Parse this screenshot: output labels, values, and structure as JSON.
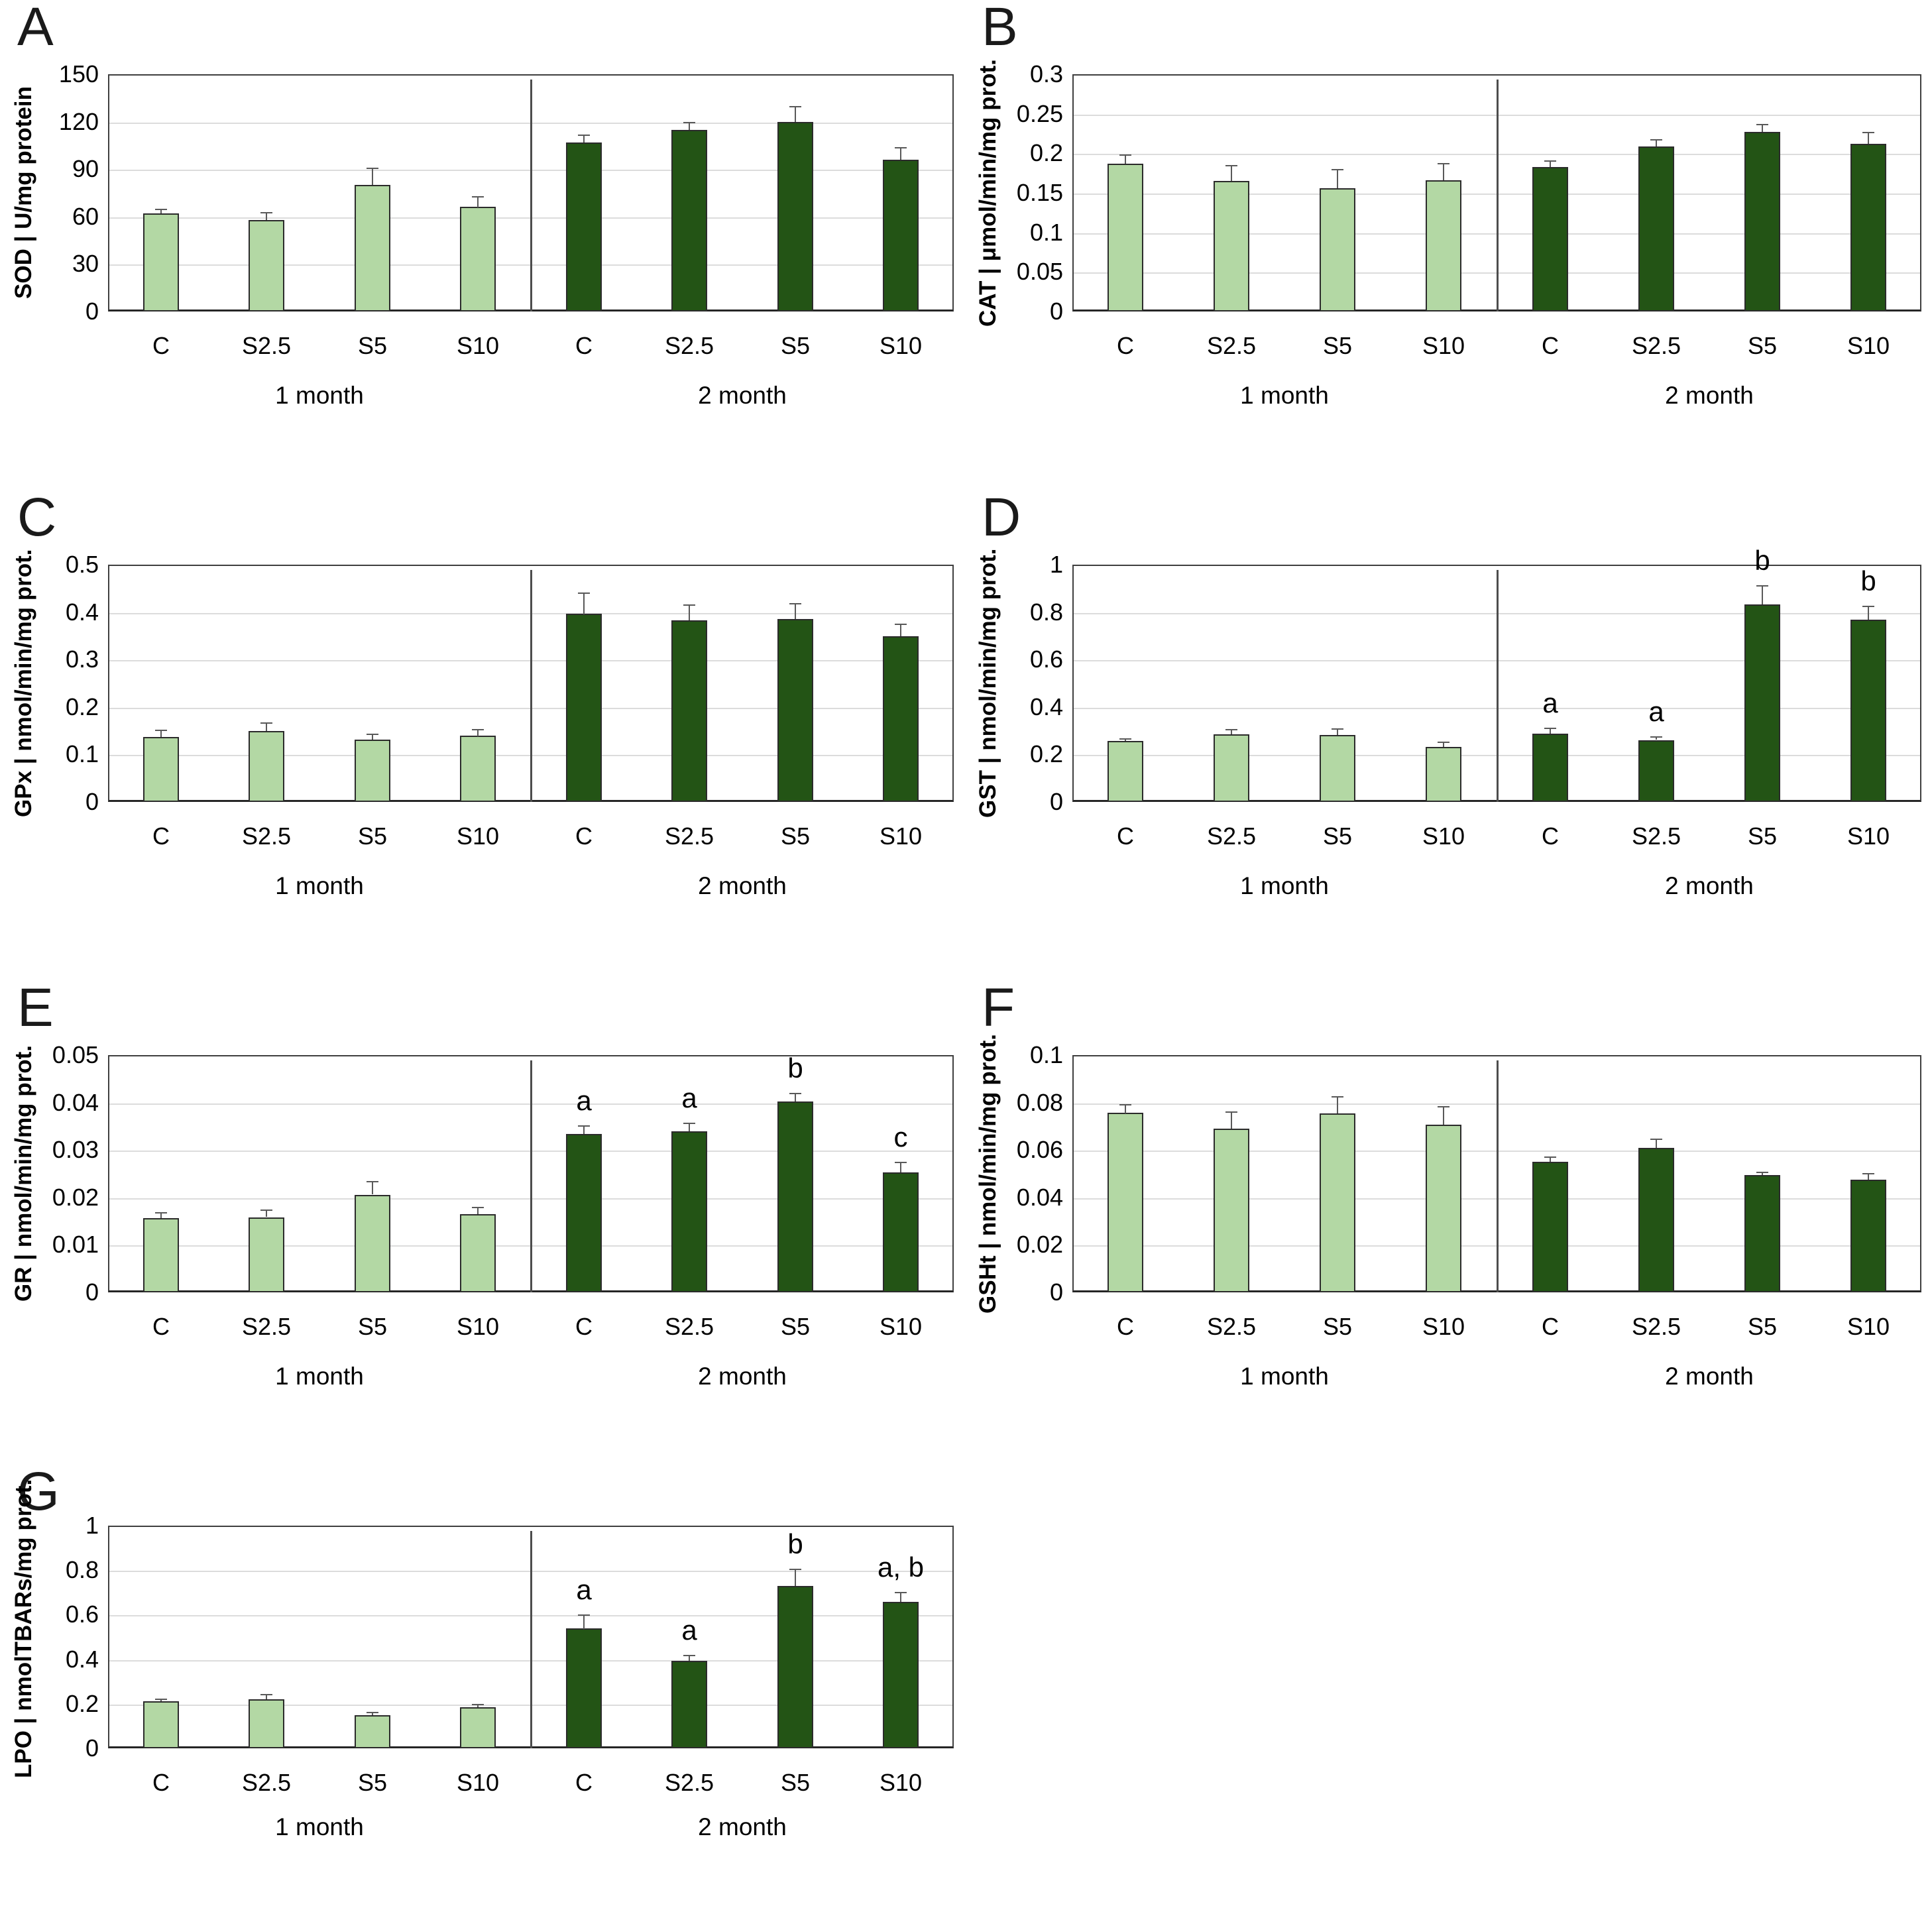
{
  "figure": {
    "style": {
      "background": "#ffffff",
      "month1_bar_color": "#b3d8a4",
      "month2_bar_color": "#235415",
      "bar_border_color": "#2b2b2b",
      "gridline_color": "#dcdcdc",
      "axis_color": "#3f3f3f",
      "error_bar_color": "#595959",
      "text_color": "#000000"
    }
  },
  "chart_data": [
    {
      "panel": "A",
      "type": "bar",
      "ylabel": "SOD | U/mg protein",
      "ylim": [
        0,
        150
      ],
      "yticks": [
        {
          "v": 0,
          "label": "0"
        },
        {
          "v": 30,
          "label": "30"
        },
        {
          "v": 60,
          "label": "60"
        },
        {
          "v": 90,
          "label": "90"
        },
        {
          "v": 120,
          "label": "120"
        },
        {
          "v": 150,
          "label": "150"
        }
      ],
      "categories": [
        "C",
        "S2.5",
        "S5",
        "S10",
        "C",
        "S2.5",
        "S5",
        "S10"
      ],
      "group_labels": [
        "1 month",
        "2 month"
      ],
      "groups": [
        0,
        0,
        0,
        0,
        1,
        1,
        1,
        1
      ],
      "values": [
        62,
        58,
        80,
        66,
        107,
        115,
        120,
        96
      ],
      "errors": [
        3,
        5,
        11,
        7,
        5,
        5,
        10,
        8
      ],
      "sig_letters": [
        "",
        "",
        "",
        "",
        "",
        "",
        "",
        ""
      ],
      "legend": "none",
      "grid": "horizontal"
    },
    {
      "panel": "B",
      "type": "bar",
      "ylabel": "CAT | μmol/min/mg prot.",
      "ylim": [
        0,
        0.3
      ],
      "yticks": [
        {
          "v": 0,
          "label": "0"
        },
        {
          "v": 0.05,
          "label": "0.05"
        },
        {
          "v": 0.1,
          "label": "0.1"
        },
        {
          "v": 0.15,
          "label": "0.15"
        },
        {
          "v": 0.2,
          "label": "0.2"
        },
        {
          "v": 0.25,
          "label": "0.25"
        },
        {
          "v": 0.3,
          "label": "0.3"
        }
      ],
      "categories": [
        "C",
        "S2.5",
        "S5",
        "S10",
        "C",
        "S2.5",
        "S5",
        "S10"
      ],
      "group_labels": [
        "1 month",
        "2 month"
      ],
      "groups": [
        0,
        0,
        0,
        0,
        1,
        1,
        1,
        1
      ],
      "values": [
        0.187,
        0.165,
        0.156,
        0.166,
        0.183,
        0.209,
        0.227,
        0.212
      ],
      "errors": [
        0.012,
        0.02,
        0.024,
        0.022,
        0.008,
        0.009,
        0.01,
        0.015
      ],
      "sig_letters": [
        "",
        "",
        "",
        "",
        "",
        "",
        "",
        ""
      ],
      "legend": "none",
      "grid": "horizontal"
    },
    {
      "panel": "C",
      "type": "bar",
      "ylabel": "GPx | nmol/min/mg prot.",
      "ylim": [
        0,
        0.5
      ],
      "yticks": [
        {
          "v": 0,
          "label": "0"
        },
        {
          "v": 0.1,
          "label": "0.1"
        },
        {
          "v": 0.2,
          "label": "0.2"
        },
        {
          "v": 0.3,
          "label": "0.3"
        },
        {
          "v": 0.4,
          "label": "0.4"
        },
        {
          "v": 0.5,
          "label": "0.5"
        }
      ],
      "categories": [
        "C",
        "S2.5",
        "S5",
        "S10",
        "C",
        "S2.5",
        "S5",
        "S10"
      ],
      "group_labels": [
        "1 month",
        "2 month"
      ],
      "groups": [
        0,
        0,
        0,
        0,
        1,
        1,
        1,
        1
      ],
      "values": [
        0.137,
        0.15,
        0.131,
        0.139,
        0.396,
        0.383,
        0.385,
        0.349
      ],
      "errors": [
        0.015,
        0.018,
        0.013,
        0.015,
        0.046,
        0.033,
        0.034,
        0.027
      ],
      "sig_letters": [
        "",
        "",
        "",
        "",
        "",
        "",
        "",
        ""
      ],
      "legend": "none",
      "grid": "horizontal"
    },
    {
      "panel": "D",
      "type": "bar",
      "ylabel": "GST | nmol/min/mg prot.",
      "ylim": [
        0,
        1
      ],
      "yticks": [
        {
          "v": 0,
          "label": "0"
        },
        {
          "v": 0.2,
          "label": "0.2"
        },
        {
          "v": 0.4,
          "label": "0.4"
        },
        {
          "v": 0.6,
          "label": "0.6"
        },
        {
          "v": 0.8,
          "label": "0.8"
        },
        {
          "v": 1,
          "label": "1"
        }
      ],
      "categories": [
        "C",
        "S2.5",
        "S5",
        "S10",
        "C",
        "S2.5",
        "S5",
        "S10"
      ],
      "group_labels": [
        "1 month",
        "2 month"
      ],
      "groups": [
        0,
        0,
        0,
        0,
        1,
        1,
        1,
        1
      ],
      "values": [
        0.256,
        0.286,
        0.283,
        0.232,
        0.289,
        0.261,
        0.833,
        0.767
      ],
      "errors": [
        0.012,
        0.022,
        0.027,
        0.022,
        0.025,
        0.015,
        0.08,
        0.06
      ],
      "sig_letters": [
        "",
        "",
        "",
        "",
        "a",
        "a",
        "b",
        "b"
      ],
      "legend": "none",
      "grid": "horizontal"
    },
    {
      "panel": "E",
      "type": "bar",
      "ylabel": "GR | nmol/min/mg prot.",
      "ylim": [
        0,
        0.05
      ],
      "yticks": [
        {
          "v": 0,
          "label": "0"
        },
        {
          "v": 0.01,
          "label": "0.01"
        },
        {
          "v": 0.02,
          "label": "0.02"
        },
        {
          "v": 0.03,
          "label": "0.03"
        },
        {
          "v": 0.04,
          "label": "0.04"
        },
        {
          "v": 0.05,
          "label": "0.05"
        }
      ],
      "categories": [
        "C",
        "S2.5",
        "S5",
        "S10",
        "C",
        "S2.5",
        "S5",
        "S10"
      ],
      "group_labels": [
        "1 month",
        "2 month"
      ],
      "groups": [
        0,
        0,
        0,
        0,
        1,
        1,
        1,
        1
      ],
      "values": [
        0.0157,
        0.0158,
        0.0206,
        0.0165,
        0.0334,
        0.0339,
        0.0402,
        0.0253
      ],
      "errors": [
        0.0012,
        0.0016,
        0.0028,
        0.0015,
        0.0018,
        0.0018,
        0.0018,
        0.0022
      ],
      "sig_letters": [
        "",
        "",
        "",
        "",
        "a",
        "a",
        "b",
        "c"
      ],
      "legend": "none",
      "grid": "horizontal"
    },
    {
      "panel": "F",
      "type": "bar",
      "ylabel": "GSHt | nmol/min/mg prot.",
      "ylim": [
        0,
        0.1
      ],
      "yticks": [
        {
          "v": 0,
          "label": "0"
        },
        {
          "v": 0.02,
          "label": "0.02"
        },
        {
          "v": 0.04,
          "label": "0.04"
        },
        {
          "v": 0.06,
          "label": "0.06"
        },
        {
          "v": 0.08,
          "label": "0.08"
        },
        {
          "v": 0.1,
          "label": "0.1"
        }
      ],
      "categories": [
        "C",
        "S2.5",
        "S5",
        "S10",
        "C",
        "S2.5",
        "S5",
        "S10"
      ],
      "group_labels": [
        "1 month",
        "2 month"
      ],
      "groups": [
        0,
        0,
        0,
        0,
        1,
        1,
        1,
        1
      ],
      "values": [
        0.0756,
        0.069,
        0.0754,
        0.0708,
        0.0551,
        0.0609,
        0.0494,
        0.0475
      ],
      "errors": [
        0.0038,
        0.0072,
        0.0072,
        0.0078,
        0.0021,
        0.0038,
        0.0014,
        0.0028
      ],
      "sig_letters": [
        "",
        "",
        "",
        "",
        "",
        "",
        "",
        ""
      ],
      "legend": "none",
      "grid": "horizontal"
    },
    {
      "panel": "G",
      "type": "bar",
      "ylabel": "LPO | nmolTBARs/mg prot.",
      "ylim": [
        0,
        1
      ],
      "yticks": [
        {
          "v": 0,
          "label": "0"
        },
        {
          "v": 0.2,
          "label": "0.2"
        },
        {
          "v": 0.4,
          "label": "0.4"
        },
        {
          "v": 0.6,
          "label": "0.6"
        },
        {
          "v": 0.8,
          "label": "0.8"
        },
        {
          "v": 1,
          "label": "1"
        }
      ],
      "categories": [
        "C",
        "S2.5",
        "S5",
        "S10",
        "C",
        "S2.5",
        "S5",
        "S10"
      ],
      "group_labels": [
        "1 month",
        "2 month"
      ],
      "groups": [
        0,
        0,
        0,
        0,
        1,
        1,
        1,
        1
      ],
      "values": [
        0.211,
        0.22,
        0.15,
        0.184,
        0.538,
        0.393,
        0.728,
        0.657
      ],
      "errors": [
        0.013,
        0.025,
        0.015,
        0.014,
        0.064,
        0.026,
        0.078,
        0.046
      ],
      "sig_letters": [
        "",
        "",
        "",
        "",
        "a",
        "a",
        "b",
        "a, b"
      ],
      "legend": "none",
      "grid": "horizontal"
    }
  ]
}
